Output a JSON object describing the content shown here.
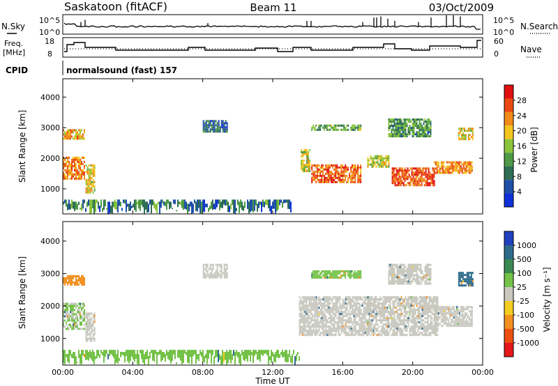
{
  "header": {
    "station": "Saskatoon (fitACF)",
    "beam": "Beam 11",
    "date": "03/Oct/2009"
  },
  "status_panels": {
    "nsky_label": "N.Sky",
    "nsearch_label": "N.Search",
    "freq_label_1": "Freq.",
    "freq_label_2": "[MHz]",
    "nave_label": "Nave",
    "cpid_label": "CPID",
    "cpid_value": "normalsound (fast) 157",
    "noise_ticks": [
      "10^5",
      "10^0"
    ],
    "freq_ticks": [
      "18",
      "8"
    ],
    "nave_ticks": [
      "60",
      "0"
    ]
  },
  "colors": {
    "power_scale": [
      "#1030d8",
      "#1f50a8",
      "#2f6e55",
      "#4e9a46",
      "#8bc43c",
      "#f3c41e",
      "#f08a18",
      "#ea4a12",
      "#e01010"
    ],
    "velocity_scale": [
      "#2040c0",
      "#2e6a8c",
      "#3a8a52",
      "#74c248",
      "#c8c8bf",
      "#f4cc20",
      "#f29020",
      "#ec5010",
      "#e41818"
    ]
  },
  "chart_data": [
    {
      "type": "heatmap",
      "panel": "power",
      "xlabel": "",
      "ylabel": "Slant Range [km]",
      "x_ticks": [
        "00:00",
        "04:00",
        "08:00",
        "12:00",
        "16:00",
        "20:00",
        "00:00"
      ],
      "xlim_hours": [
        0,
        24
      ],
      "ylim": [
        180,
        4600
      ],
      "y_ticks": [
        1000,
        2000,
        3000,
        4000
      ],
      "colorbar_label": "Power [dB]",
      "colorbar_ticks": [
        "4",
        "8",
        "12",
        "16",
        "20",
        "24",
        "28"
      ],
      "value_range": [
        0,
        30
      ],
      "regions": [
        {
          "t0": 0.0,
          "t1": 1.2,
          "r0": 1350,
          "r1": 2050,
          "level": 22
        },
        {
          "t0": 0.0,
          "t1": 1.2,
          "r0": 2650,
          "r1": 2950,
          "level": 20
        },
        {
          "t0": 1.3,
          "t1": 1.8,
          "r0": 900,
          "r1": 1800,
          "level": 18
        },
        {
          "t0": 8.0,
          "t1": 9.4,
          "r0": 2850,
          "r1": 3250,
          "level": 7
        },
        {
          "t0": 13.6,
          "t1": 14.1,
          "r0": 1600,
          "r1": 2300,
          "level": 17
        },
        {
          "t0": 14.2,
          "t1": 17.0,
          "r0": 1200,
          "r1": 1800,
          "level": 24
        },
        {
          "t0": 14.2,
          "t1": 17.0,
          "r0": 2900,
          "r1": 3100,
          "level": 12
        },
        {
          "t0": 17.4,
          "t1": 18.6,
          "r0": 1700,
          "r1": 2100,
          "level": 16
        },
        {
          "t0": 18.8,
          "t1": 21.2,
          "r0": 1100,
          "r1": 1700,
          "level": 25
        },
        {
          "t0": 18.6,
          "t1": 21.0,
          "r0": 2700,
          "r1": 3300,
          "level": 11
        },
        {
          "t0": 21.2,
          "t1": 23.4,
          "r0": 1500,
          "r1": 1900,
          "level": 22
        },
        {
          "t0": 22.6,
          "t1": 23.4,
          "r0": 2600,
          "r1": 3000,
          "level": 18
        },
        {
          "t0": 0.0,
          "t1": 13.0,
          "r0": 180,
          "r1": 650,
          "level": 8
        }
      ]
    },
    {
      "type": "heatmap",
      "panel": "velocity",
      "xlabel": "Time UT",
      "ylabel": "Slant Range [km]",
      "x_ticks": [
        "00:00",
        "04:00",
        "08:00",
        "12:00",
        "16:00",
        "20:00",
        "00:00"
      ],
      "xlim_hours": [
        0,
        24
      ],
      "ylim": [
        180,
        4600
      ],
      "y_ticks": [
        1000,
        2000,
        3000,
        4000
      ],
      "colorbar_label": "Velocity [m s⁻¹]",
      "colorbar_ticks": [
        "1000",
        "500",
        "100",
        "25",
        "-25",
        "-100",
        "-500",
        "-1000"
      ],
      "regions": [
        {
          "t0": 0.0,
          "t1": 1.2,
          "r0": 1300,
          "r1": 2100,
          "level": 25
        },
        {
          "t0": 0.0,
          "t1": 1.2,
          "r0": 2650,
          "r1": 2950,
          "level": -250
        },
        {
          "t0": 1.3,
          "t1": 1.8,
          "r0": 900,
          "r1": 1800,
          "level": 0
        },
        {
          "t0": 8.0,
          "t1": 9.4,
          "r0": 2850,
          "r1": 3300,
          "level": 0
        },
        {
          "t0": 13.5,
          "t1": 17.6,
          "r0": 1100,
          "r1": 2300,
          "level": 0
        },
        {
          "t0": 14.2,
          "t1": 17.0,
          "r0": 2900,
          "r1": 3100,
          "level": 60
        },
        {
          "t0": 17.4,
          "t1": 21.4,
          "r0": 1100,
          "r1": 2300,
          "level": 0
        },
        {
          "t0": 18.6,
          "t1": 21.0,
          "r0": 2700,
          "r1": 3300,
          "level": 0
        },
        {
          "t0": 21.2,
          "t1": 23.4,
          "r0": 1400,
          "r1": 2000,
          "level": 0
        },
        {
          "t0": 22.6,
          "t1": 23.4,
          "r0": 2600,
          "r1": 3050,
          "level": 150
        },
        {
          "t0": 0.0,
          "t1": 13.5,
          "r0": 180,
          "r1": 650,
          "level": 70
        }
      ]
    }
  ]
}
